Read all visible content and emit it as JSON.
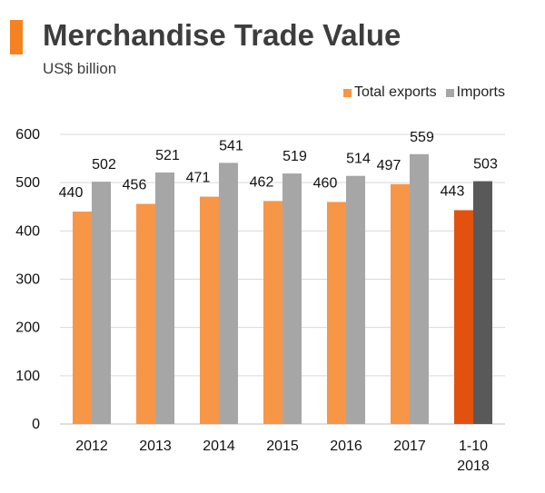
{
  "header": {
    "title": "Merchandise Trade Value",
    "subtitle": "US$ billion",
    "accent_color": "#f58220"
  },
  "chart_data": {
    "type": "bar",
    "categories": [
      "2012",
      "2013",
      "2014",
      "2015",
      "2016",
      "2017",
      "1-10\n2018"
    ],
    "series": [
      {
        "name": "Total exports",
        "values": [
          440,
          456,
          471,
          462,
          460,
          497,
          443
        ],
        "color": "#f79646",
        "highlight_color": "#e2520e"
      },
      {
        "name": "Imports",
        "values": [
          502,
          521,
          541,
          519,
          514,
          559,
          503
        ],
        "color": "#a6a6a6",
        "highlight_color": "#595959"
      }
    ],
    "highlighted_category_index": 6,
    "ylim": [
      0,
      600
    ],
    "yticks": [
      0,
      100,
      200,
      300,
      400,
      500,
      600
    ],
    "xlabel": "",
    "ylabel": "",
    "grid": true,
    "legend_position": "top-right",
    "data_labels": true
  }
}
